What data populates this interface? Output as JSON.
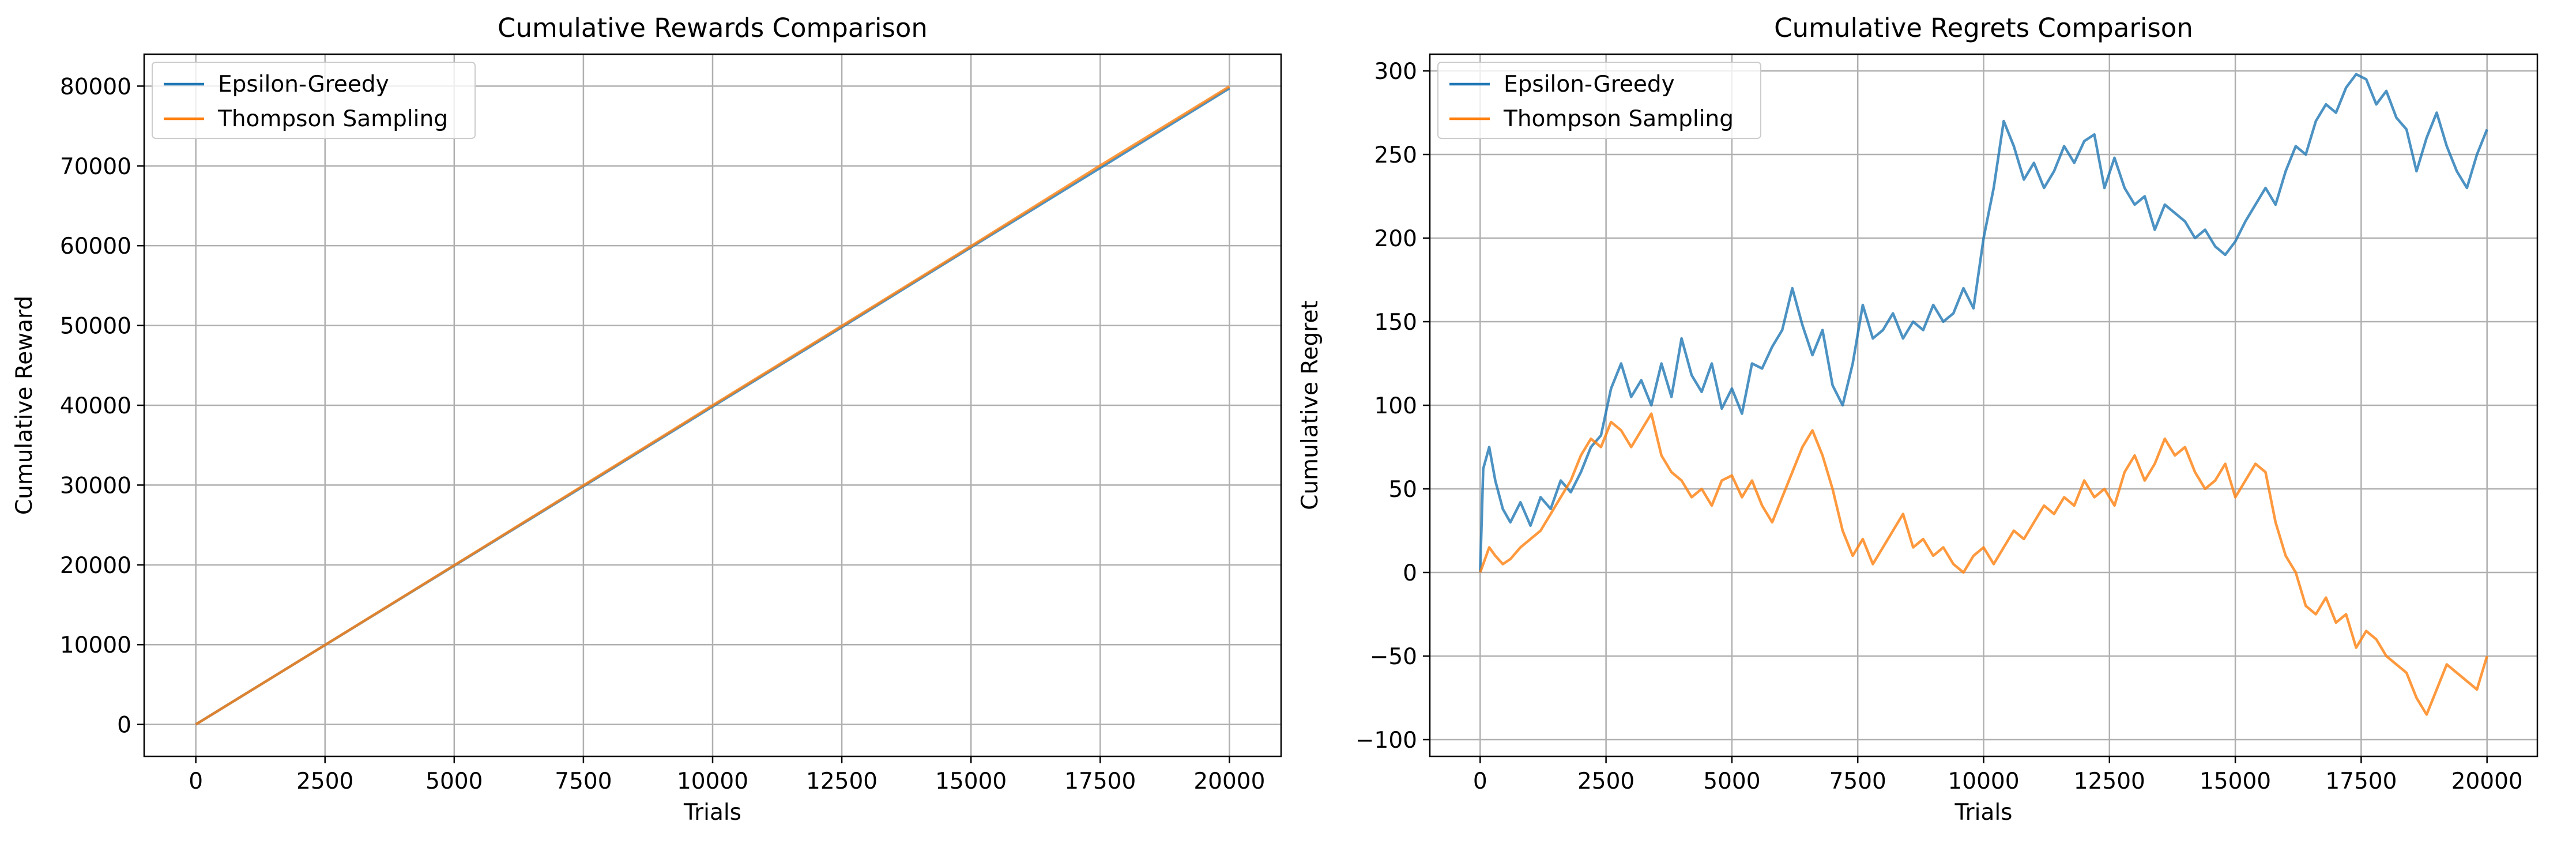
{
  "chart_data": [
    {
      "type": "line",
      "title": "Cumulative Rewards Comparison",
      "xlabel": "Trials",
      "ylabel": "Cumulative Reward",
      "xlim": [
        -1000,
        21000
      ],
      "ylim": [
        -4000,
        84000
      ],
      "xticks": [
        0,
        2500,
        5000,
        7500,
        10000,
        12500,
        15000,
        17500,
        20000
      ],
      "yticks": [
        0,
        10000,
        20000,
        30000,
        40000,
        50000,
        60000,
        70000,
        80000
      ],
      "grid": true,
      "legend": "top-left",
      "series": [
        {
          "name": "Epsilon-Greedy",
          "color": "#1f77b4",
          "x": [
            0,
            2500,
            5000,
            7500,
            10000,
            12500,
            15000,
            17500,
            20000
          ],
          "values": [
            0,
            9950,
            19900,
            29850,
            39850,
            49800,
            59800,
            69750,
            79730
          ]
        },
        {
          "name": "Thompson Sampling",
          "color": "#ff7f0e",
          "x": [
            0,
            2500,
            5000,
            7500,
            10000,
            12500,
            15000,
            17500,
            20000
          ],
          "values": [
            0,
            9960,
            19950,
            29960,
            39990,
            49950,
            59950,
            70050,
            79950
          ]
        }
      ]
    },
    {
      "type": "line",
      "title": "Cumulative Regrets Comparison",
      "xlabel": "Trials",
      "ylabel": "Cumulative Regret",
      "xlim": [
        -1000,
        21000
      ],
      "ylim": [
        -110,
        310
      ],
      "xticks": [
        0,
        2500,
        5000,
        7500,
        10000,
        12500,
        15000,
        17500,
        20000
      ],
      "yticks": [
        -100,
        -50,
        0,
        50,
        100,
        150,
        200,
        250,
        300
      ],
      "grid": true,
      "legend": "top-left",
      "series": [
        {
          "name": "Epsilon-Greedy",
          "color": "#1f77b4",
          "x": [
            0,
            60,
            180,
            300,
            450,
            600,
            800,
            1000,
            1200,
            1400,
            1600,
            1800,
            2000,
            2200,
            2400,
            2600,
            2800,
            3000,
            3200,
            3400,
            3600,
            3800,
            4000,
            4200,
            4400,
            4600,
            4800,
            5000,
            5200,
            5400,
            5600,
            5800,
            6000,
            6200,
            6400,
            6600,
            6800,
            7000,
            7200,
            7400,
            7600,
            7800,
            8000,
            8200,
            8400,
            8600,
            8800,
            9000,
            9200,
            9400,
            9600,
            9800,
            10000,
            10200,
            10400,
            10600,
            10800,
            11000,
            11200,
            11400,
            11600,
            11800,
            12000,
            12200,
            12400,
            12600,
            12800,
            13000,
            13200,
            13400,
            13600,
            13800,
            14000,
            14200,
            14400,
            14600,
            14800,
            15000,
            15200,
            15400,
            15600,
            15800,
            16000,
            16200,
            16400,
            16600,
            16800,
            17000,
            17200,
            17400,
            17600,
            17800,
            18000,
            18200,
            18400,
            18600,
            18800,
            19000,
            19200,
            19400,
            19600,
            19800,
            20000
          ],
          "values": [
            0,
            62,
            75,
            55,
            38,
            30,
            42,
            28,
            45,
            38,
            55,
            48,
            60,
            75,
            82,
            110,
            125,
            105,
            115,
            100,
            125,
            105,
            140,
            118,
            108,
            125,
            98,
            110,
            95,
            125,
            122,
            135,
            145,
            170,
            148,
            130,
            145,
            112,
            100,
            125,
            160,
            140,
            145,
            155,
            140,
            150,
            145,
            160,
            150,
            155,
            170,
            158,
            200,
            230,
            270,
            255,
            235,
            245,
            230,
            240,
            255,
            245,
            258,
            262,
            230,
            248,
            230,
            220,
            225,
            205,
            220,
            215,
            210,
            200,
            205,
            195,
            190,
            198,
            210,
            220,
            230,
            220,
            240,
            255,
            250,
            270,
            280,
            275,
            290,
            298,
            295,
            280,
            288,
            272,
            265,
            240,
            260,
            275,
            255,
            240,
            230,
            250,
            265
          ]
        },
        {
          "name": "Thompson Sampling",
          "color": "#ff7f0e",
          "x": [
            0,
            60,
            180,
            300,
            450,
            600,
            800,
            1000,
            1200,
            1400,
            1600,
            1800,
            2000,
            2200,
            2400,
            2600,
            2800,
            3000,
            3200,
            3400,
            3600,
            3800,
            4000,
            4200,
            4400,
            4600,
            4800,
            5000,
            5200,
            5400,
            5600,
            5800,
            6000,
            6200,
            6400,
            6600,
            6800,
            7000,
            7200,
            7400,
            7600,
            7800,
            8000,
            8200,
            8400,
            8600,
            8800,
            9000,
            9200,
            9400,
            9600,
            9800,
            10000,
            10200,
            10400,
            10600,
            10800,
            11000,
            11200,
            11400,
            11600,
            11800,
            12000,
            12200,
            12400,
            12600,
            12800,
            13000,
            13200,
            13400,
            13600,
            13800,
            14000,
            14200,
            14400,
            14600,
            14800,
            15000,
            15200,
            15400,
            15600,
            15800,
            16000,
            16200,
            16400,
            16600,
            16800,
            17000,
            17200,
            17400,
            17600,
            17800,
            18000,
            18200,
            18400,
            18600,
            18800,
            19000,
            19200,
            19400,
            19600,
            19800,
            20000
          ],
          "values": [
            0,
            5,
            15,
            10,
            5,
            8,
            15,
            20,
            25,
            35,
            45,
            55,
            70,
            80,
            75,
            90,
            85,
            75,
            85,
            95,
            70,
            60,
            55,
            45,
            50,
            40,
            55,
            58,
            45,
            55,
            40,
            30,
            45,
            60,
            75,
            85,
            70,
            50,
            25,
            10,
            20,
            5,
            15,
            25,
            35,
            15,
            20,
            10,
            15,
            5,
            0,
            10,
            15,
            5,
            15,
            25,
            20,
            30,
            40,
            35,
            45,
            40,
            55,
            45,
            50,
            40,
            60,
            70,
            55,
            65,
            80,
            70,
            75,
            60,
            50,
            55,
            65,
            45,
            55,
            65,
            60,
            30,
            10,
            0,
            -20,
            -25,
            -15,
            -30,
            -25,
            -45,
            -35,
            -40,
            -50,
            -55,
            -60,
            -75,
            -85,
            -70,
            -55,
            -60,
            -65,
            -70,
            -50
          ]
        }
      ]
    }
  ]
}
